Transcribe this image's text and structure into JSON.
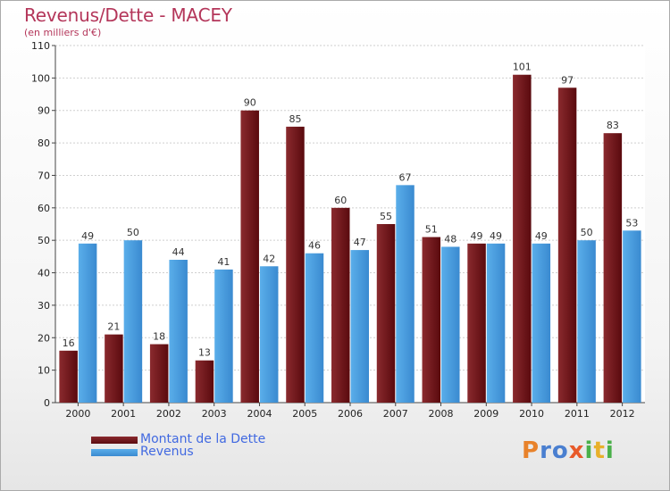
{
  "chart_data": {
    "type": "bar",
    "title": "Revenus/Dette - MACEY",
    "subtitle": "(en milliers d'€)",
    "categories": [
      "2000",
      "2001",
      "2002",
      "2003",
      "2004",
      "2005",
      "2006",
      "2007",
      "2008",
      "2009",
      "2010",
      "2011",
      "2012"
    ],
    "series": [
      {
        "name": "Montant de la Dette",
        "color": "#7a1a1f",
        "values": [
          16,
          21,
          18,
          13,
          90,
          85,
          60,
          55,
          51,
          49,
          101,
          97,
          83
        ]
      },
      {
        "name": "Revenus",
        "color": "#4a9fe0",
        "values": [
          49,
          50,
          44,
          41,
          42,
          46,
          47,
          67,
          48,
          49,
          49,
          50,
          53
        ]
      }
    ],
    "ylim": [
      0,
      110
    ],
    "yticks": [
      0,
      10,
      20,
      30,
      40,
      50,
      60,
      70,
      80,
      90,
      100,
      110
    ],
    "grid": true,
    "legend": "bottom-left"
  },
  "logo": {
    "letters": [
      {
        "ch": "P",
        "color": "#e8822a"
      },
      {
        "ch": "r",
        "color": "#4a7fd0"
      },
      {
        "ch": "o",
        "color": "#4a7fd0"
      },
      {
        "ch": "x",
        "color": "#e85a2a"
      },
      {
        "ch": "i",
        "color": "#4ab04a"
      },
      {
        "ch": "t",
        "color": "#e8b02a"
      },
      {
        "ch": "i",
        "color": "#4ab04a"
      }
    ]
  }
}
